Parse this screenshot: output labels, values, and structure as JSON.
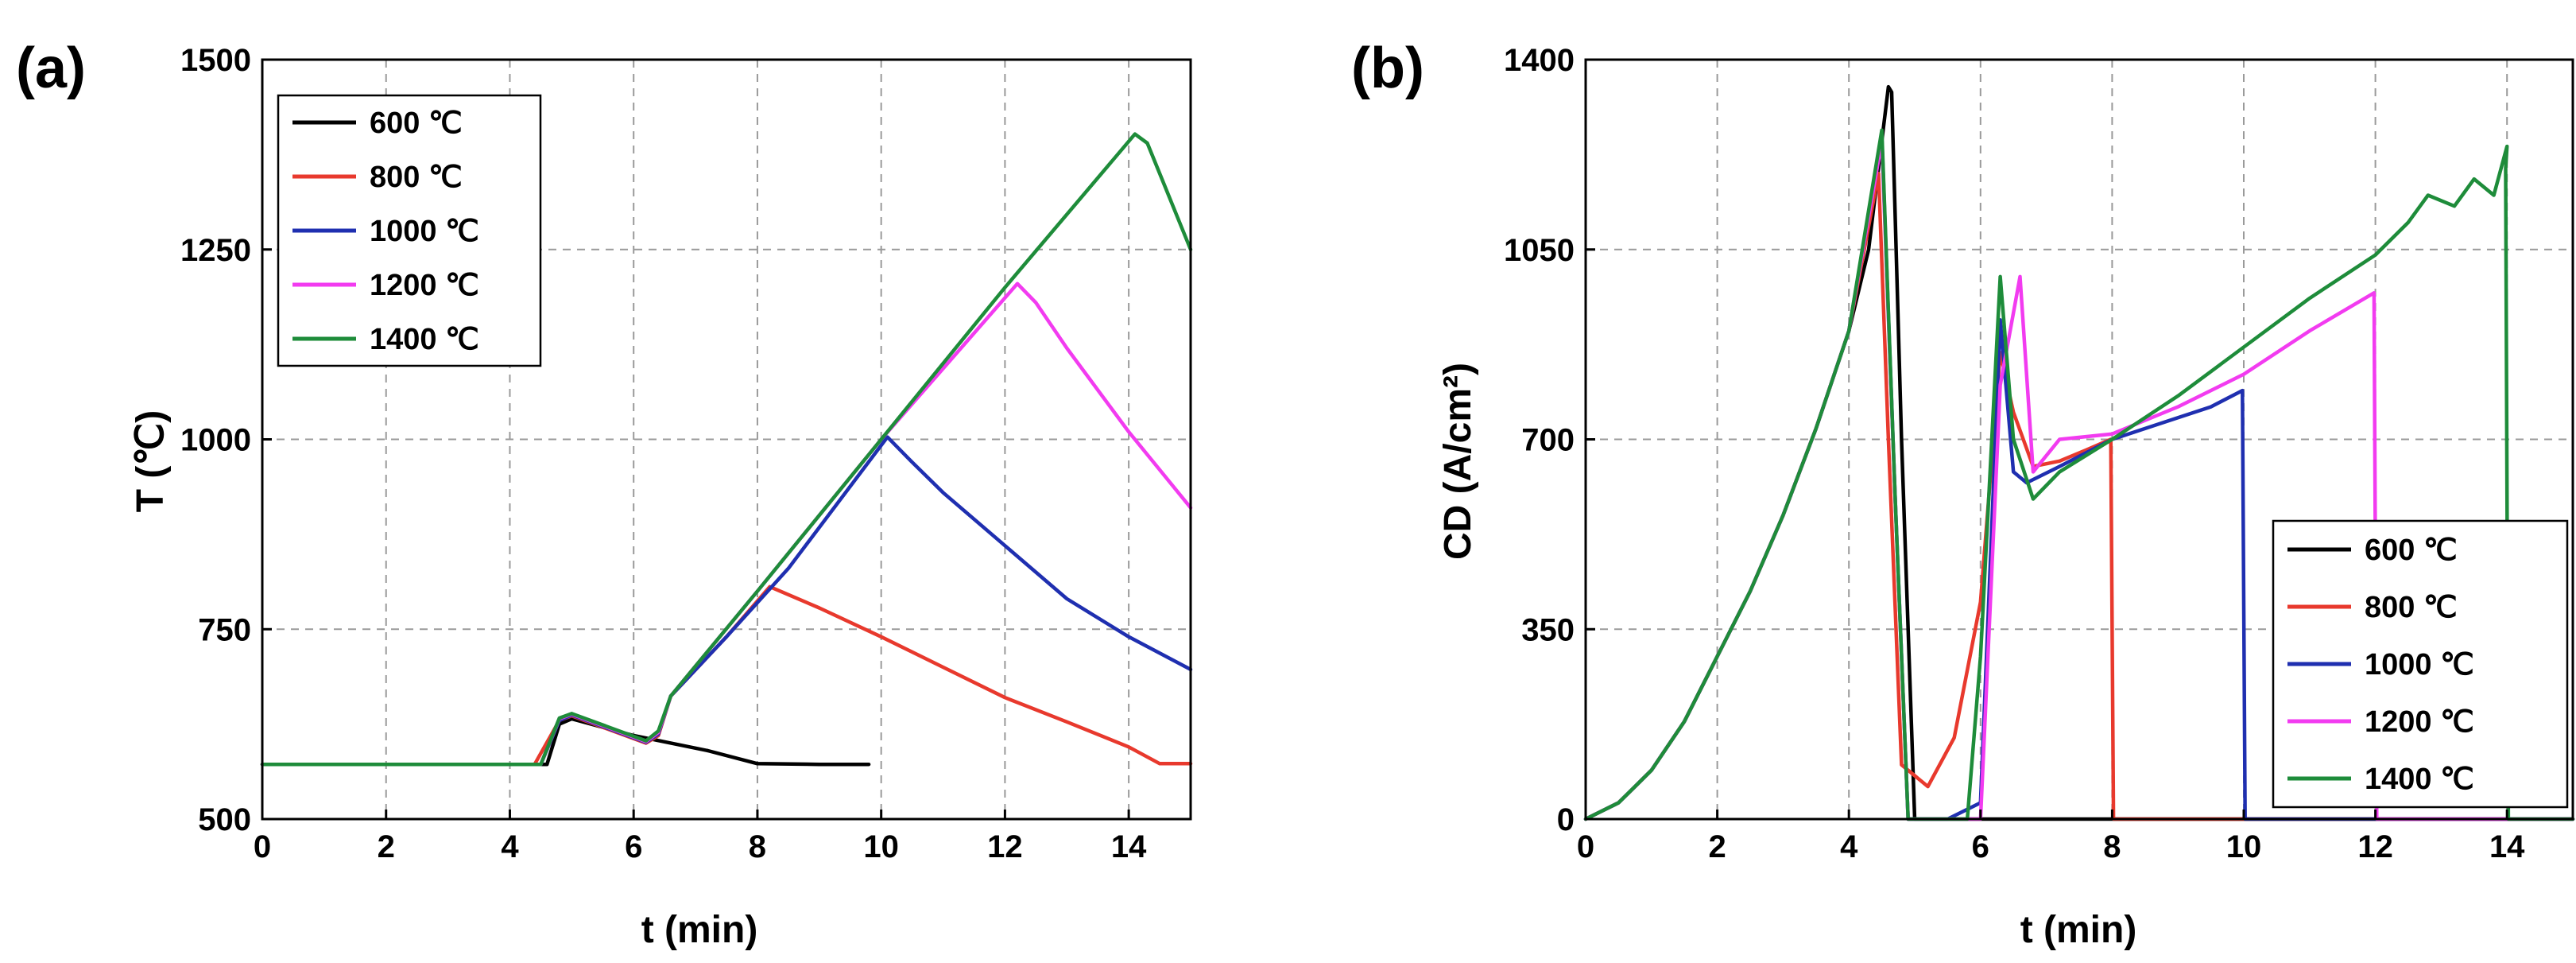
{
  "chart_data": [
    {
      "panel": "(a)",
      "type": "line",
      "xlabel": "t (min)",
      "ylabel": "T (℃)",
      "xlim": [
        0,
        15
      ],
      "ylim": [
        500,
        1500
      ],
      "xticks": [
        0,
        2,
        4,
        6,
        8,
        10,
        12,
        14
      ],
      "yticks": [
        500,
        750,
        1000,
        1250,
        1500
      ],
      "grid": true,
      "legend_position": "top-left",
      "series": [
        {
          "name": "600 ℃",
          "color": "#000000",
          "x": [
            0,
            4.6,
            4.8,
            5.0,
            6.0,
            6.3,
            7.2,
            8.0,
            9.0,
            9.8
          ],
          "y": [
            572,
            572,
            625,
            632,
            610,
            605,
            590,
            573,
            572,
            572
          ]
        },
        {
          "name": "800 ℃",
          "color": "#e8392d",
          "x": [
            0,
            4.4,
            4.8,
            5.0,
            6.2,
            6.4,
            6.6,
            7.5,
            8.2,
            9,
            10,
            11,
            12,
            13,
            14,
            14.5,
            15
          ],
          "y": [
            572,
            572,
            630,
            636,
            600,
            610,
            662,
            740,
            806,
            778,
            740,
            700,
            660,
            628,
            595,
            573,
            573
          ]
        },
        {
          "name": "1000 ℃",
          "color": "#1f2fb0",
          "x": [
            0,
            4.5,
            4.8,
            5.0,
            6.2,
            6.4,
            6.6,
            7.5,
            8.5,
            10.1,
            10.5,
            11,
            12,
            13,
            14,
            15
          ],
          "y": [
            572,
            572,
            630,
            637,
            601,
            612,
            662,
            740,
            830,
            1003,
            970,
            930,
            860,
            790,
            740,
            697
          ]
        },
        {
          "name": "1200 ℃",
          "color": "#f23bf0",
          "x": [
            0,
            4.5,
            4.8,
            5.0,
            6.2,
            6.4,
            6.6,
            8,
            10,
            12.2,
            12.5,
            13,
            14,
            15
          ],
          "y": [
            572,
            572,
            632,
            638,
            602,
            614,
            662,
            800,
            1000,
            1205,
            1180,
            1120,
            1010,
            910
          ]
        },
        {
          "name": "1400 ℃",
          "color": "#1e8c3a",
          "x": [
            0,
            4.5,
            4.8,
            5.0,
            6.2,
            6.4,
            6.6,
            8,
            10,
            12,
            14.1,
            14.3,
            14.6,
            15
          ],
          "y": [
            572,
            572,
            633,
            639,
            603,
            616,
            662,
            800,
            1000,
            1200,
            1402,
            1390,
            1330,
            1250
          ]
        }
      ]
    },
    {
      "panel": "(b)",
      "type": "line",
      "xlabel": "t (min)",
      "ylabel": "CD (A/cm²)",
      "xlim": [
        0,
        15
      ],
      "ylim": [
        0,
        1400
      ],
      "xticks": [
        0,
        2,
        4,
        6,
        8,
        10,
        12,
        14
      ],
      "yticks": [
        0,
        350,
        700,
        1050,
        1400
      ],
      "grid": true,
      "legend_position": "bottom-right",
      "series": [
        {
          "name": "600 ℃",
          "color": "#000000",
          "x": [
            0,
            0.5,
            1,
            1.5,
            2,
            2.5,
            3,
            3.5,
            4,
            4.3,
            4.6,
            4.65,
            4.8,
            5.0,
            5.5,
            6.0,
            8.0,
            15
          ],
          "y": [
            0,
            30,
            90,
            180,
            300,
            420,
            560,
            720,
            900,
            1050,
            1350,
            1340,
            700,
            0,
            0,
            0,
            0,
            0
          ]
        },
        {
          "name": "800 ℃",
          "color": "#e8392d",
          "x": [
            0,
            0.5,
            1,
            1.5,
            2,
            2.5,
            3,
            3.5,
            4,
            4.45,
            4.6,
            4.8,
            5.2,
            5.6,
            6.0,
            6.3,
            6.5,
            6.8,
            7.2,
            7.6,
            7.98,
            8.02,
            9,
            15
          ],
          "y": [
            0,
            30,
            90,
            180,
            300,
            420,
            560,
            720,
            900,
            1190,
            700,
            100,
            60,
            150,
            400,
            860,
            750,
            650,
            660,
            680,
            700,
            0,
            0,
            0
          ]
        },
        {
          "name": "1000 ℃",
          "color": "#1f2fb0",
          "x": [
            0,
            0.5,
            1,
            1.5,
            2,
            2.5,
            3,
            3.5,
            4,
            4.5,
            4.7,
            4.9,
            5.5,
            6.0,
            6.3,
            6.5,
            6.7,
            7.2,
            8,
            8.5,
            9,
            9.5,
            9.98,
            10.02,
            11,
            15
          ],
          "y": [
            0,
            30,
            90,
            180,
            300,
            420,
            560,
            720,
            900,
            1260,
            600,
            0,
            0,
            30,
            920,
            640,
            620,
            650,
            700,
            720,
            740,
            760,
            790,
            0,
            0,
            0
          ]
        },
        {
          "name": "1200 ℃",
          "color": "#f23bf0",
          "x": [
            0,
            0.5,
            1,
            1.5,
            2,
            2.5,
            3,
            3.5,
            4,
            4.5,
            4.7,
            4.9,
            6.0,
            6.3,
            6.6,
            6.8,
            7.2,
            8,
            9,
            10,
            11,
            11.98,
            12.02,
            13,
            15
          ],
          "y": [
            0,
            30,
            90,
            180,
            300,
            420,
            560,
            720,
            900,
            1250,
            600,
            0,
            0,
            800,
            1000,
            640,
            700,
            710,
            760,
            820,
            900,
            970,
            0,
            0,
            0
          ]
        },
        {
          "name": "1400 ℃",
          "color": "#1e8c3a",
          "x": [
            0,
            0.5,
            1,
            1.5,
            2,
            2.5,
            3,
            3.5,
            4,
            4.5,
            4.7,
            4.9,
            5.8,
            6.0,
            6.3,
            6.5,
            6.8,
            7.2,
            8,
            9,
            10,
            11,
            12,
            12.5,
            12.8,
            13.2,
            13.5,
            13.8,
            14.0,
            13.98,
            14.02,
            15
          ],
          "y": [
            0,
            30,
            90,
            180,
            300,
            420,
            560,
            720,
            900,
            1270,
            600,
            0,
            0,
            300,
            1000,
            700,
            590,
            640,
            700,
            780,
            870,
            960,
            1040,
            1100,
            1150,
            1130,
            1180,
            1150,
            1240,
            1200,
            0,
            0
          ]
        }
      ]
    }
  ]
}
